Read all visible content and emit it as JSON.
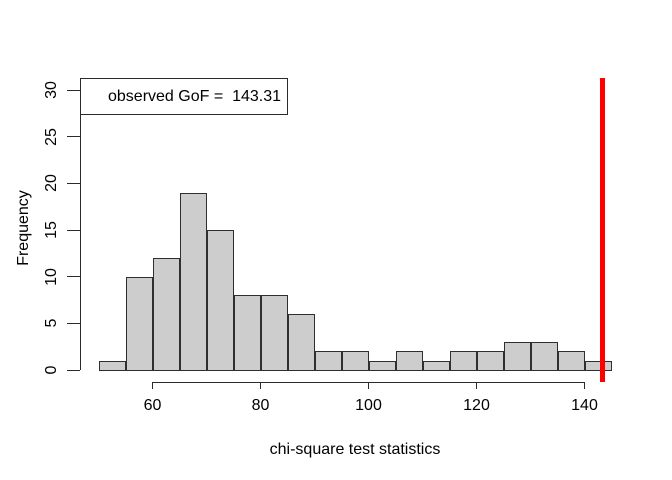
{
  "chart_data": {
    "type": "bar",
    "subtype": "histogram",
    "title": "",
    "xlabel": "chi-square test statistics",
    "ylabel": "Frequency",
    "bins": {
      "start": 50,
      "width": 5
    },
    "counts": [
      1,
      10,
      12,
      19,
      15,
      8,
      8,
      6,
      2,
      2,
      1,
      2,
      1,
      2,
      2,
      3,
      3,
      2,
      1
    ],
    "x_ticks": [
      60,
      80,
      100,
      120,
      140
    ],
    "y_ticks": [
      0,
      5,
      10,
      15,
      20,
      25,
      30
    ],
    "xlim": [
      50,
      145
    ],
    "ylim": [
      0,
      30
    ],
    "grid": false,
    "observed_gof": 143.31,
    "legend_text": "observed GoF =  143.31",
    "legend_position": "topleft",
    "colors": {
      "bar_fill": "#cdcdcd",
      "bar_border": "#2f2f2f",
      "axis": "#2b2b2b",
      "observed_line": "#ff0000",
      "text": "#000000",
      "background": "#ffffff"
    }
  }
}
